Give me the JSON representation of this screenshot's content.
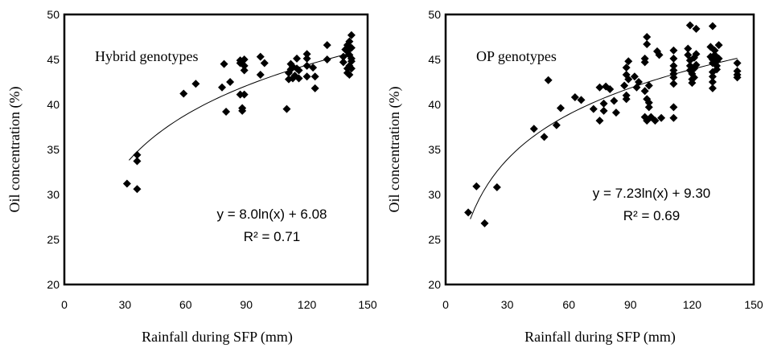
{
  "chart_data": [
    {
      "type": "scatter",
      "panel_label": "Hybrid genotypes",
      "xlabel": "Rainfall during SFP (mm)",
      "ylabel": "Oil concentration (%)",
      "xlim": [
        0,
        150
      ],
      "ylim": [
        20,
        50
      ],
      "xticks": [
        0,
        30,
        60,
        90,
        120,
        150
      ],
      "yticks": [
        20,
        25,
        30,
        35,
        40,
        45,
        50
      ],
      "grid": false,
      "equation": "y = 8.0ln(x) + 6.08",
      "r_squared": "R² = 0.71",
      "trendline": {
        "type": "logarithmic",
        "a": 8.0,
        "b": 6.08,
        "x_from": 32,
        "x_to": 142
      },
      "points": [
        [
          31,
          31.2
        ],
        [
          36,
          34.4
        ],
        [
          36,
          33.7
        ],
        [
          36,
          30.6
        ],
        [
          59,
          41.2
        ],
        [
          65,
          42.3
        ],
        [
          78,
          41.9
        ],
        [
          79,
          44.5
        ],
        [
          80,
          39.2
        ],
        [
          82,
          42.5
        ],
        [
          87,
          44.6
        ],
        [
          87,
          44.9
        ],
        [
          87,
          41.1
        ],
        [
          88,
          39.6
        ],
        [
          88,
          39.3
        ],
        [
          89,
          44.3
        ],
        [
          89,
          43.8
        ],
        [
          89,
          45.0
        ],
        [
          89,
          41.1
        ],
        [
          97,
          45.3
        ],
        [
          97,
          43.3
        ],
        [
          99,
          44.6
        ],
        [
          110,
          39.5
        ],
        [
          111,
          43.5
        ],
        [
          111,
          42.8
        ],
        [
          112,
          43.9
        ],
        [
          112,
          44.5
        ],
        [
          113,
          42.9
        ],
        [
          113,
          44.2
        ],
        [
          114,
          43.2
        ],
        [
          115,
          45.1
        ],
        [
          115,
          44.0
        ],
        [
          116,
          42.9
        ],
        [
          116,
          43.8
        ],
        [
          120,
          45.6
        ],
        [
          120,
          45.1
        ],
        [
          120,
          44.3
        ],
        [
          120,
          43.1
        ],
        [
          123,
          44.1
        ],
        [
          124,
          43.1
        ],
        [
          124,
          41.8
        ],
        [
          130,
          46.6
        ],
        [
          130,
          45.0
        ],
        [
          138,
          44.7
        ],
        [
          138,
          45.3
        ],
        [
          139,
          46.1
        ],
        [
          140,
          45.9
        ],
        [
          140,
          46.6
        ],
        [
          140,
          44.0
        ],
        [
          140,
          43.5
        ],
        [
          141,
          47.0
        ],
        [
          141,
          45.5
        ],
        [
          141,
          44.3
        ],
        [
          141,
          43.3
        ],
        [
          142,
          47.7
        ],
        [
          142,
          46.3
        ],
        [
          142,
          45.1
        ],
        [
          142,
          44.8
        ],
        [
          142,
          44.0
        ]
      ]
    },
    {
      "type": "scatter",
      "panel_label": "OP genotypes",
      "xlabel": "Rainfall during SFP (mm)",
      "ylabel": "Oil concentration (%)",
      "xlim": [
        0,
        150
      ],
      "ylim": [
        20,
        50
      ],
      "xticks": [
        0,
        30,
        60,
        90,
        120,
        150
      ],
      "yticks": [
        20,
        25,
        30,
        35,
        40,
        45,
        50
      ],
      "grid": false,
      "equation": "y = 7.23ln(x) + 9.30",
      "r_squared": "R² = 0.69",
      "trendline": {
        "type": "logarithmic",
        "a": 7.23,
        "b": 9.3,
        "x_from": 12,
        "x_to": 142
      },
      "points": [
        [
          11,
          28.0
        ],
        [
          15,
          30.9
        ],
        [
          19,
          26.8
        ],
        [
          25,
          30.8
        ],
        [
          43,
          37.3
        ],
        [
          48,
          36.4
        ],
        [
          50,
          42.7
        ],
        [
          54,
          37.7
        ],
        [
          56,
          39.6
        ],
        [
          63,
          40.8
        ],
        [
          66,
          40.5
        ],
        [
          72,
          39.5
        ],
        [
          75,
          41.9
        ],
        [
          75,
          38.2
        ],
        [
          77,
          40.1
        ],
        [
          77,
          39.3
        ],
        [
          78,
          42.0
        ],
        [
          80,
          41.7
        ],
        [
          82,
          40.4
        ],
        [
          83,
          39.1
        ],
        [
          87,
          42.1
        ],
        [
          88,
          44.1
        ],
        [
          88,
          43.3
        ],
        [
          88,
          41.0
        ],
        [
          88,
          40.6
        ],
        [
          89,
          44.8
        ],
        [
          89,
          42.8
        ],
        [
          92,
          43.1
        ],
        [
          93,
          41.9
        ],
        [
          94,
          42.5
        ],
        [
          97,
          45.1
        ],
        [
          97,
          44.7
        ],
        [
          97,
          41.5
        ],
        [
          97,
          38.6
        ],
        [
          98,
          47.5
        ],
        [
          98,
          46.7
        ],
        [
          98,
          40.6
        ],
        [
          98,
          38.2
        ],
        [
          99,
          42.1
        ],
        [
          99,
          40.2
        ],
        [
          99,
          39.7
        ],
        [
          100,
          38.6
        ],
        [
          102,
          38.2
        ],
        [
          103,
          45.9
        ],
        [
          104,
          45.5
        ],
        [
          105,
          38.5
        ],
        [
          111,
          46.0
        ],
        [
          111,
          45.1
        ],
        [
          111,
          44.3
        ],
        [
          111,
          43.8
        ],
        [
          111,
          43.4
        ],
        [
          111,
          43.0
        ],
        [
          111,
          42.3
        ],
        [
          111,
          39.7
        ],
        [
          111,
          38.5
        ],
        [
          118,
          46.2
        ],
        [
          118,
          45.5
        ],
        [
          119,
          48.8
        ],
        [
          119,
          44.9
        ],
        [
          119,
          44.3
        ],
        [
          119,
          43.8
        ],
        [
          120,
          43.4
        ],
        [
          120,
          42.8
        ],
        [
          120,
          42.4
        ],
        [
          121,
          45.2
        ],
        [
          121,
          44.0
        ],
        [
          121,
          43.0
        ],
        [
          122,
          48.4
        ],
        [
          122,
          45.6
        ],
        [
          122,
          44.4
        ],
        [
          129,
          46.4
        ],
        [
          129,
          45.3
        ],
        [
          130,
          48.7
        ],
        [
          130,
          45.0
        ],
        [
          130,
          44.6
        ],
        [
          130,
          43.6
        ],
        [
          130,
          43.1
        ],
        [
          130,
          42.5
        ],
        [
          130,
          41.8
        ],
        [
          131,
          46.0
        ],
        [
          131,
          45.5
        ],
        [
          132,
          44.8
        ],
        [
          132,
          44.3
        ],
        [
          132,
          43.9
        ],
        [
          133,
          46.6
        ],
        [
          133,
          45.1
        ],
        [
          142,
          44.6
        ],
        [
          142,
          43.7
        ],
        [
          142,
          43.3
        ],
        [
          142,
          43.0
        ]
      ]
    }
  ]
}
